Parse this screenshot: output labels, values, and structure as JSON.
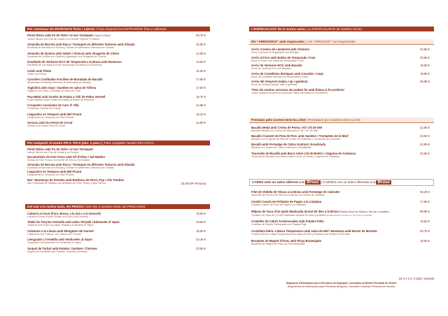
{
  "left": {
    "entrants": {
      "title": "Per començar els ENTRANTS freds i calents",
      "subtitle": "| Para empezar los ENTRANTES fríos y calientes",
      "items": [
        {
          "name": "Pernil Ibèric amb Pa de Vidre i el seu Tomàquet",
          "note": "*Opció ½ Ració",
          "desc": "Jamón Ibérico con Pan de Cristal y su Tomate *Opción ½ Ración",
          "price": "25,75 €"
        },
        {
          "name": "Amanida de Burrata amb Ruca i Tomàquet en diferents Textures amb Olivada",
          "note": "",
          "desc": "Ensalada de Burrata con Rúcula y Tomate en diferentes Texturas con Olivada",
          "price": "15,50 €"
        },
        {
          "name": "Amanida de Quinoa amb Salmó i Alvocat amb Vinagreta de Cítrics",
          "note": "",
          "desc": "Ensalada de Quinoa con Salmón y Aguacate con Vinagreta de Cítricos",
          "price": "14,95 €"
        },
        {
          "name": "Graellada de Verdures ECO de Temporada a la Brasa amb Romesco",
          "note": "",
          "desc": "Parrillada de Verduras Eco de Temporada a la Brasa con Romesco",
          "price": "13,50 €"
        },
        {
          "name": "Caldo amb Pilota",
          "note": "",
          "desc": "Caldo con Pelota",
          "price": "12,50 €"
        },
        {
          "name": "Carxofes Confitades Farcides de Brandada de Bacallà",
          "note": "",
          "desc": "Alcachofas Confitadas Rellenas de Brandada de Bacalao",
          "price": "17,80 €"
        },
        {
          "name": "Tagliolini amb Ceps i Gambes en salsa de Tòfona",
          "note": "",
          "desc": "Tagliolini con Ceps y Gambas en salsa de Trufa",
          "price": "17,50 €"
        },
        {
          "name": "Pop Melat amb Gratén de Patata a l'Oli de Pebre Vermell",
          "note": "",
          "desc": "Pulpo Melado sobre Gratén de Patata al Aceite de Pimentón",
          "price": "18,75 €"
        },
        {
          "name": "Croquetes Casolanes de Carn d' Olla",
          "note": "",
          "desc": "Croquetas Caseras de Cocido",
          "price": "14,85 €"
        },
        {
          "name": "Llagostins en Tempura amb Mel Picant",
          "note": "",
          "desc": "Langostinos en Tempura con Miel Picante",
          "price": "15,20 €"
        },
        {
          "name": "Sonsos amb Ou Ferrat de Corral",
          "note": "",
          "desc": "Sonsos con Huevo Frito de Corral",
          "price": "14,90 €"
        }
      ]
    },
    "picapica": {
      "title": "Per compartir el nostre PICA- PICA (min. 2 pers.)",
      "subtitle": "| Para compartir nuestro PICA-PICA",
      "items": [
        {
          "name": "Pernil Ibèric amb Pa de Vidre i el seu Tomàquet",
          "desc": "Jamón Ibérico con Pan de Cristal y su Tomate"
        },
        {
          "name": "Escamarlans de Foie Fresc amb Oli d'Oliva i Sal Maldon",
          "desc": "Virutas de Foie Fresco con Aceite de Oliva y Sal Maldon"
        },
        {
          "name": "Amanida de Burrata amb Ruca i Tomàquet en diferents Textures amb Olivada",
          "desc": "Ensalada de Burrata con Rúcula y Tomate en diferentes Texturas con Olivada"
        },
        {
          "name": "Llagostins en Tempura amb Mel Picant",
          "desc": "Langostinos en Tempura con Miel Picante"
        }
      ],
      "last_name": "Mar i Muntanya de Fonetes amb Botifarra de Perol, Pop i Alls Tendres",
      "last_desc": "Mar y Montaña de Habitas con Butifarra de Perol, Pulpo y Ajos Tiernos",
      "last_price": "22,00 €/P. Persona"
    },
    "peixos": {
      "title": "Del mar a la nostra taula, els PEIXOS",
      "subtitle": "| Del mar a nuestra mesa, los PESCADOS",
      "items": [
        {
          "name": "Llobarro al Gust (Forn, Brasa, a la Sal o a la Donosti)",
          "desc": "Lubina al Gusto (Horno, Brasa, a la Sal o a la Donosti)",
          "price": "19,50 €"
        },
        {
          "name": "Tataki de Tonyina Vermella amb salsa Teriyaki i Edamame al Vapor",
          "desc": "Tataki de Atún Rojo con salsa Teriyaki y Edamame al Vapor",
          "price": "19,50 €"
        },
        {
          "name": "Calamars a la Llauna amb Mongetes del Ganxet",
          "desc": "Calamares a la \"Llauna\" con Judías del \"Ganxet\"",
          "price": "19,90 €"
        },
        {
          "name": "Llenguado a l'Ametlla amb Verduretes al Vapor",
          "desc": "Lenguado a la Almendra con Verduritas al Vapor",
          "price": "23,45 €"
        },
        {
          "name": "Suquet de Turbot amb Patates, Gambes i Cloïsses",
          "desc": "Suquet de Rodaballo con Patatas, Gambas y Almejas",
          "price": "23,55 €"
        }
      ]
    }
  },
  "right": {
    "especialitat": {
      "title": "L'ESPECIALITAT de la nostra cuina",
      "subtitle": "| La ESPECIALIDAD de nuestra cocina"
    },
    "arrossos": {
      "title": "Els \"ARROSSOS\" amb majúscules",
      "subtitle": "| Los \"ARROCES\" con mayúsculas",
      "items": [
        {
          "name": "Arròs Cremós de Llamàntol amb Cloïsses",
          "desc": "Arroz Cremoso de Bogavante con Almejas",
          "price": "24,80 €"
        },
        {
          "name": "Arròs al Forn amb Bolets de Temporada i Foie",
          "desc": "Arroz al Horno con Setas de Temporada y Foie",
          "price": "20,50 €"
        },
        {
          "name": "Arròs de Verdures ECO amb Bacallà",
          "desc": "Arroz de Verduras Eco con Bacalao",
          "price": "19,50 €"
        },
        {
          "name": "Arròs de Costelletes Ibèriques amb Carxofes i Ceps",
          "desc": "Arroz de Costillitas Ibéricas con Alcachofas y Ceps",
          "price": "19,90 €"
        },
        {
          "name": "Arròs del Senyoret (sèpia, rap i gambes)",
          "desc": "Arroz de Señorito (sepia, rape y gambas)",
          "price": "25,90 €"
        }
      ],
      "note1": "*Tots els nostres arrossos els podem fer amb fideua si ho preferiu/",
      "note2": "Todos nuestros arroces los podemos hacer con fideua si lo prefieren"
    },
    "bacalla": {
      "title": "Premiats pels nostres BACALLANS",
      "subtitle": "| Premiados por nuestros BACALAOS",
      "items": [
        {
          "name": "Bacallà Melat amb Crema de Poma / All i Oli de Mel",
          "desc": "Bacalao Melado con Crema de Manzana y \"All i Oli\" de Miel",
          "price": "22,95 €"
        },
        {
          "name": "Bacallà Cruixent de Pota de Porc amb Gambes i Trompetes de la Mort",
          "desc": "Bacalao con Crujiente de Pies de Cerdo con Gambas y Trompetas de la Muerte",
          "price": "23,50 €"
        },
        {
          "name": "Bacallà amb Formatge de Cabra Gratinat i Escalivada",
          "desc": "Bacalao con Queso de Cabra Gratinado y Escalibada",
          "price": "22,95 €"
        },
        {
          "name": "Tournedó de Bacallà amb Bacó sobre Llit de Bolets i Llàgrima de Carbassa",
          "desc": "Tournedó de Bacalao con Bacon sobre Lecho de Setas y Lágrima de Calabaza",
          "price": "22,50 €"
        }
      ]
    },
    "carns": {
      "title": "CARNS amb un sabor diferent a la",
      "title_word": "Brasa",
      "subtitle": "| CARNES con un sabor diferente a la",
      "subtitle_word": "Brasa",
      "items": [
        {
          "name": "Filet de Vedella de Toluxa a la Brasa amb Formatge de Cabrales",
          "desc": "Solomillo de Ternera de Toluxa a la Brasa con Queso de Cabrales",
          "price": "26,25 €"
        },
        {
          "name": "Canelò Casolà de Pollastre de Pagès a la Catalana",
          "desc": "Canelón Casero de Pollo de Payés a la Catalana",
          "price": "17,50 €"
        },
        {
          "name": "Mitjana de Vaca d'Un Quilo Madurada durant 60 dies a la Brasa",
          "desc": "Chuletón de Vaca de Un Kilo Madurado durante 60 días a la Brasa",
          "price": "69,90 €",
          "note": "(Pedido Servir las Tablas a Tres per Compartir)",
          "note2": "(Pedido Sevicio Cortado en Tres para Compartir)"
        },
        {
          "name": "Costelles de Cabrit Arrebossades amb Patates Palla",
          "desc": "Costillas de Cabrito Rebozadas con Patatas Paja",
          "price": "19,50 €"
        },
        {
          "name": "Costellam Ibèric a Baixa Temperatura amb salsa de Mel i Mostassa amb Morter de Moniato",
          "desc": "Costillar Ibérico a Baja Temperatura con salsa de Miel y Mostaza con Mortero de Boniato",
          "price": "20,75 €"
        },
        {
          "name": "Broqueta de Magret d'Ànec amb Pinya Braseajada",
          "desc": "Brocheta de Magret de Pato con Piña Braseada",
          "price": "18,50 €"
        }
      ]
    },
    "footer": {
      "iva": "10 % I.V.A. Inclòs | Incluido",
      "line1": "Disposem d'Informació per a Persones Al·lèrgiques. Consulteu al Mestre Personal de Servei.",
      "line2": "Disponemos de Información para Personas Alérgicas. Consulten a Nuestro Personal de Servicio."
    }
  }
}
